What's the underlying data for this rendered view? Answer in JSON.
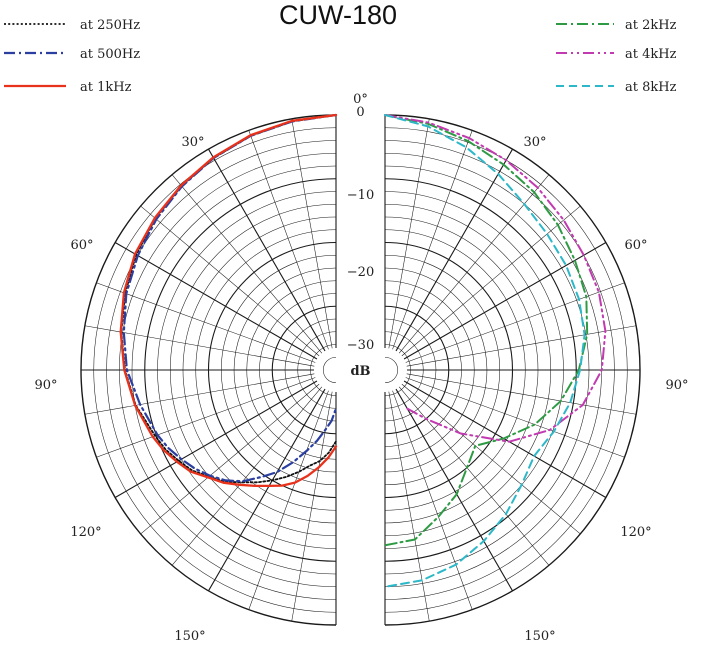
{
  "title": "CUW-180",
  "chart_data": {
    "type": "polar",
    "title": "CUW-180",
    "unit_label": "dB",
    "radial_ticks": [
      "0",
      "−10",
      "−20",
      "−30"
    ],
    "radial_range": [
      -40,
      0
    ],
    "angle_ticks": {
      "top": "0°",
      "left": [
        "30°",
        "60°",
        "90°",
        "120°",
        "150°"
      ],
      "right": [
        "30°",
        "60°",
        "90°",
        "120°",
        "150°"
      ]
    },
    "grid": true,
    "legend_placement": "top-left and top-right",
    "series": [
      {
        "name": "at 250Hz",
        "side": "left",
        "color": "#111111",
        "dash": "2,2.2",
        "width": 1.8,
        "points": [
          [
            0,
            0
          ],
          [
            10,
            -0.4
          ],
          [
            20,
            -0.9
          ],
          [
            30,
            -1.6
          ],
          [
            40,
            -2.3
          ],
          [
            50,
            -3.0
          ],
          [
            60,
            -3.8
          ],
          [
            70,
            -4.8
          ],
          [
            80,
            -5.8
          ],
          [
            90,
            -6.9
          ],
          [
            100,
            -8.1
          ],
          [
            110,
            -9.8
          ],
          [
            115,
            -10.5
          ],
          [
            120,
            -11.5
          ],
          [
            125,
            -12.5
          ],
          [
            130,
            -14.0
          ],
          [
            135,
            -15.2
          ],
          [
            140,
            -17.0
          ],
          [
            145,
            -18.5
          ],
          [
            150,
            -20.0
          ],
          [
            155,
            -21.5
          ],
          [
            160,
            -23.0
          ],
          [
            165,
            -24.5
          ],
          [
            170,
            -25.5
          ],
          [
            175,
            -27.0
          ],
          [
            180,
            -28.8
          ]
        ]
      },
      {
        "name": "at 500Hz",
        "side": "left",
        "color": "#2b3fa0",
        "dash": "11,4,2,4",
        "width": 2.2,
        "points": [
          [
            0,
            0
          ],
          [
            10,
            -0.4
          ],
          [
            20,
            -0.9
          ],
          [
            30,
            -1.6
          ],
          [
            40,
            -2.4
          ],
          [
            50,
            -3.2
          ],
          [
            60,
            -4.1
          ],
          [
            70,
            -5.0
          ],
          [
            80,
            -6.2
          ],
          [
            90,
            -7.2
          ],
          [
            100,
            -8.8
          ],
          [
            110,
            -10.2
          ],
          [
            115,
            -11.0
          ],
          [
            120,
            -12.0
          ],
          [
            125,
            -13.0
          ],
          [
            130,
            -14.2
          ],
          [
            135,
            -15.5
          ],
          [
            140,
            -17.2
          ],
          [
            145,
            -19.5
          ],
          [
            150,
            -21.5
          ],
          [
            155,
            -24.0
          ],
          [
            160,
            -26.5
          ],
          [
            165,
            -28.5
          ],
          [
            170,
            -30.5
          ],
          [
            175,
            -32.0
          ],
          [
            180,
            -34.0
          ]
        ]
      },
      {
        "name": "at 1kHz",
        "side": "left",
        "color": "#e8321c",
        "dash": "",
        "width": 2.3,
        "points": [
          [
            0,
            0
          ],
          [
            10,
            -0.3
          ],
          [
            20,
            -0.8
          ],
          [
            30,
            -1.5
          ],
          [
            40,
            -2.2
          ],
          [
            50,
            -2.9
          ],
          [
            60,
            -3.6
          ],
          [
            70,
            -4.6
          ],
          [
            80,
            -5.7
          ],
          [
            90,
            -6.8
          ],
          [
            100,
            -8.0
          ],
          [
            110,
            -9.4
          ],
          [
            115,
            -10.2
          ],
          [
            120,
            -11.2
          ],
          [
            125,
            -12.2
          ],
          [
            130,
            -13.8
          ],
          [
            135,
            -15.0
          ],
          [
            140,
            -16.5
          ],
          [
            145,
            -17.8
          ],
          [
            150,
            -19.0
          ],
          [
            155,
            -20.0
          ],
          [
            160,
            -21.2
          ],
          [
            165,
            -22.8
          ],
          [
            170,
            -24.5
          ],
          [
            175,
            -26.2
          ],
          [
            180,
            -28.0
          ]
        ]
      },
      {
        "name": "at 2kHz",
        "side": "right",
        "color": "#2e9b44",
        "dash": "11,4,2,4",
        "width": 2.0,
        "points": [
          [
            0,
            0
          ],
          [
            10,
            -0.8
          ],
          [
            20,
            -1.8
          ],
          [
            30,
            -2.8
          ],
          [
            40,
            -3.6
          ],
          [
            50,
            -4.6
          ],
          [
            60,
            -5.6
          ],
          [
            70,
            -6.4
          ],
          [
            80,
            -7.8
          ],
          [
            90,
            -9.6
          ],
          [
            100,
            -12.0
          ],
          [
            110,
            -15.0
          ],
          [
            120,
            -18.5
          ],
          [
            130,
            -21.5
          ],
          [
            140,
            -20.0
          ],
          [
            150,
            -17.5
          ],
          [
            160,
            -15.5
          ],
          [
            170,
            -13.0
          ],
          [
            180,
            -12.5
          ]
        ]
      },
      {
        "name": "at 4kHz",
        "side": "right",
        "color": "#c23ab0",
        "dash": "11,4,2,4,2,4",
        "width": 2.0,
        "points": [
          [
            0,
            0
          ],
          [
            10,
            -0.6
          ],
          [
            20,
            -1.3
          ],
          [
            30,
            -2.0
          ],
          [
            40,
            -2.7
          ],
          [
            50,
            -3.4
          ],
          [
            60,
            -4.0
          ],
          [
            70,
            -4.3
          ],
          [
            80,
            -4.9
          ],
          [
            90,
            -6.0
          ],
          [
            100,
            -8.5
          ],
          [
            110,
            -12.5
          ],
          [
            120,
            -17.5
          ],
          [
            130,
            -24.5
          ],
          [
            140,
            -30.0
          ],
          [
            150,
            -33.0
          ]
        ]
      },
      {
        "name": "at 8kHz",
        "side": "right",
        "color": "#2cb8c8",
        "dash": "8,5",
        "width": 2.0,
        "points": [
          [
            0,
            0
          ],
          [
            10,
            -1.2
          ],
          [
            20,
            -2.8
          ],
          [
            30,
            -4.5
          ],
          [
            40,
            -6.0
          ],
          [
            50,
            -6.8
          ],
          [
            60,
            -7.2
          ],
          [
            70,
            -7.6
          ],
          [
            80,
            -8.2
          ],
          [
            90,
            -9.4
          ],
          [
            100,
            -10.5
          ],
          [
            110,
            -11.8
          ],
          [
            120,
            -13.0
          ],
          [
            130,
            -12.0
          ],
          [
            140,
            -10.5
          ],
          [
            150,
            -9.0
          ],
          [
            160,
            -7.5
          ],
          [
            170,
            -6.5
          ],
          [
            180,
            -6.0
          ]
        ]
      }
    ]
  }
}
